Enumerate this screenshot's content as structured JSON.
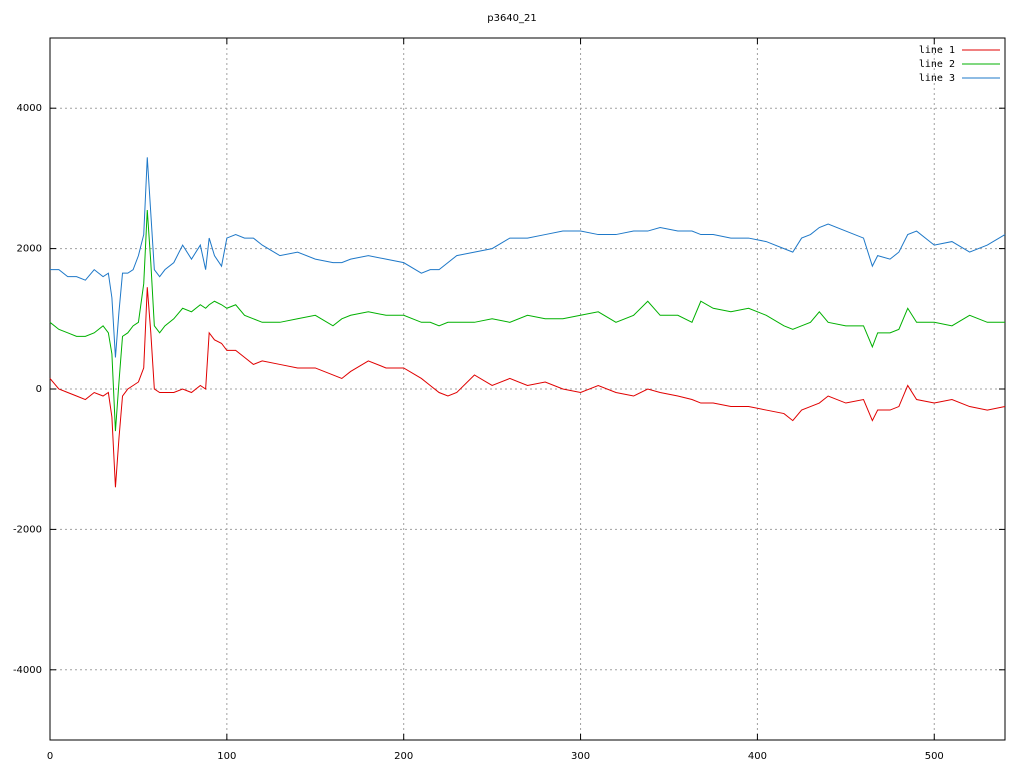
{
  "chart_data": {
    "type": "line",
    "title": "p3640_21",
    "x": [
      0,
      5,
      10,
      15,
      20,
      25,
      30,
      33,
      35,
      37,
      39,
      41,
      44,
      47,
      50,
      53,
      55,
      57,
      59,
      62,
      65,
      70,
      75,
      80,
      85,
      88,
      90,
      93,
      97,
      100,
      105,
      110,
      115,
      120,
      130,
      140,
      150,
      160,
      165,
      170,
      180,
      190,
      200,
      210,
      215,
      220,
      225,
      230,
      240,
      250,
      260,
      270,
      280,
      290,
      300,
      310,
      320,
      330,
      338,
      345,
      355,
      363,
      368,
      375,
      385,
      395,
      405,
      415,
      420,
      425,
      430,
      435,
      440,
      450,
      460,
      465,
      468,
      475,
      480,
      485,
      490,
      500,
      510,
      520,
      530,
      540
    ],
    "series": [
      {
        "name": "line 1",
        "color": "#e00000",
        "values": [
          150,
          0,
          -50,
          -100,
          -150,
          -50,
          -100,
          -50,
          -400,
          -1400,
          -700,
          -100,
          0,
          50,
          100,
          300,
          1450,
          800,
          0,
          -50,
          -50,
          -50,
          0,
          -50,
          50,
          0,
          800,
          700,
          650,
          550,
          550,
          450,
          350,
          400,
          350,
          300,
          300,
          200,
          150,
          250,
          400,
          300,
          300,
          150,
          50,
          -50,
          -100,
          -50,
          200,
          50,
          150,
          50,
          100,
          0,
          -50,
          50,
          -50,
          -100,
          0,
          -50,
          -100,
          -150,
          -200,
          -200,
          -250,
          -250,
          -300,
          -350,
          -450,
          -300,
          -250,
          -200,
          -100,
          -200,
          -150,
          -450,
          -300,
          -300,
          -250,
          50,
          -150,
          -200,
          -150,
          -250,
          -300,
          -250
        ]
      },
      {
        "name": "line 2",
        "color": "#00b000",
        "values": [
          950,
          850,
          800,
          750,
          750,
          800,
          900,
          800,
          500,
          -600,
          100,
          750,
          800,
          900,
          950,
          1500,
          2550,
          1800,
          900,
          800,
          900,
          1000,
          1150,
          1100,
          1200,
          1150,
          1200,
          1250,
          1200,
          1150,
          1200,
          1050,
          1000,
          950,
          950,
          1000,
          1050,
          900,
          1000,
          1050,
          1100,
          1050,
          1050,
          950,
          950,
          900,
          950,
          950,
          950,
          1000,
          950,
          1050,
          1000,
          1000,
          1050,
          1100,
          950,
          1050,
          1250,
          1050,
          1050,
          950,
          1250,
          1150,
          1100,
          1150,
          1050,
          900,
          850,
          900,
          950,
          1100,
          950,
          900,
          900,
          600,
          800,
          800,
          850,
          1150,
          950,
          950,
          900,
          1050,
          950,
          950
        ]
      },
      {
        "name": "line 3",
        "color": "#1e78c8",
        "values": [
          1700,
          1700,
          1600,
          1600,
          1550,
          1700,
          1600,
          1650,
          1300,
          450,
          1100,
          1650,
          1650,
          1700,
          1900,
          2200,
          3300,
          2500,
          1700,
          1600,
          1700,
          1800,
          2050,
          1850,
          2050,
          1700,
          2150,
          1900,
          1750,
          2150,
          2200,
          2150,
          2150,
          2050,
          1900,
          1950,
          1850,
          1800,
          1800,
          1850,
          1900,
          1850,
          1800,
          1650,
          1700,
          1700,
          1800,
          1900,
          1950,
          2000,
          2150,
          2150,
          2200,
          2250,
          2250,
          2200,
          2200,
          2250,
          2250,
          2300,
          2250,
          2250,
          2200,
          2200,
          2150,
          2150,
          2100,
          2000,
          1950,
          2150,
          2200,
          2300,
          2350,
          2250,
          2150,
          1750,
          1900,
          1850,
          1950,
          2200,
          2250,
          2050,
          2100,
          1950,
          2050,
          2200
        ]
      }
    ],
    "xlim": [
      0,
      540
    ],
    "xticks": [
      0,
      100,
      200,
      300,
      400,
      500
    ],
    "ylim": [
      -5000,
      5000
    ],
    "yticks": [
      -4000,
      -2000,
      0,
      2000,
      4000
    ],
    "grid": true,
    "legend": "top-right"
  }
}
